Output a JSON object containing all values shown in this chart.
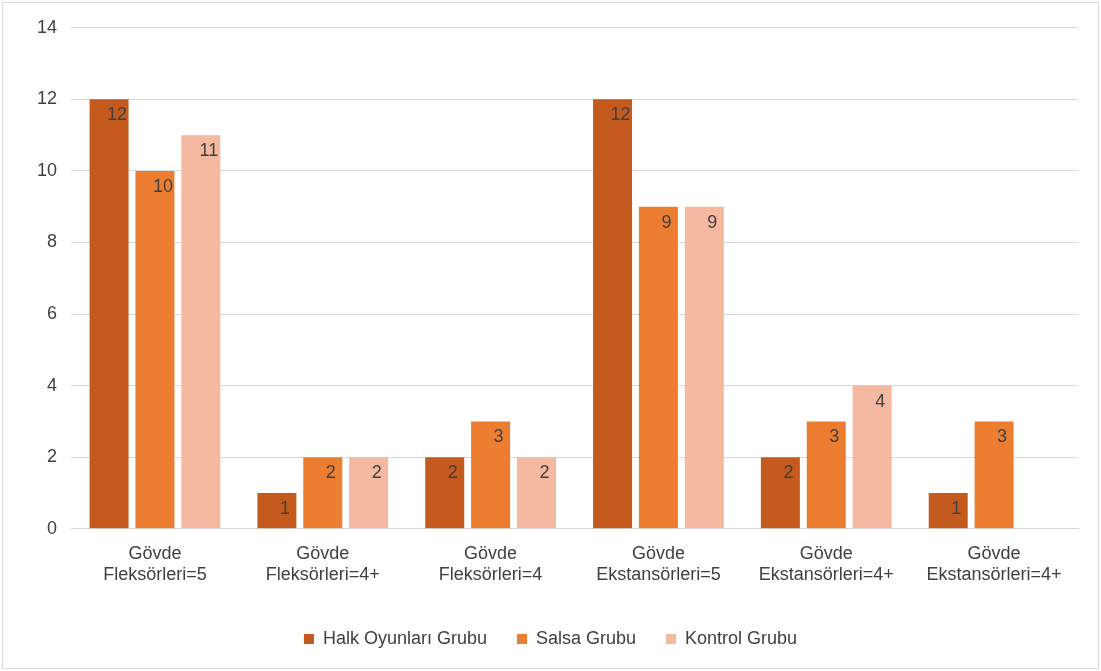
{
  "chart_data": {
    "type": "bar",
    "categories": [
      "Gövde Fleksörleri=5",
      "Gövde Fleksörleri=4+",
      "Gövde Fleksörleri=4",
      "Gövde Ekstansörleri=5",
      "Gövde Ekstansörleri=4+",
      "Gövde Ekstansörleri=4+"
    ],
    "series": [
      {
        "name": "Halk Oyunları Grubu",
        "color": "#c55a1e",
        "values": [
          12,
          1,
          2,
          12,
          2,
          1
        ]
      },
      {
        "name": "Salsa Grubu",
        "color": "#ed7d31",
        "values": [
          10,
          2,
          3,
          9,
          3,
          3
        ]
      },
      {
        "name": "Kontrol Grubu",
        "color": "#f4b9a0",
        "values": [
          11,
          2,
          2,
          9,
          4,
          null
        ]
      }
    ],
    "ylim": [
      0,
      14
    ],
    "yticks": [
      0,
      2,
      4,
      6,
      8,
      10,
      12,
      14
    ],
    "grid": "y",
    "legend": "bottom",
    "data_labels": true
  }
}
